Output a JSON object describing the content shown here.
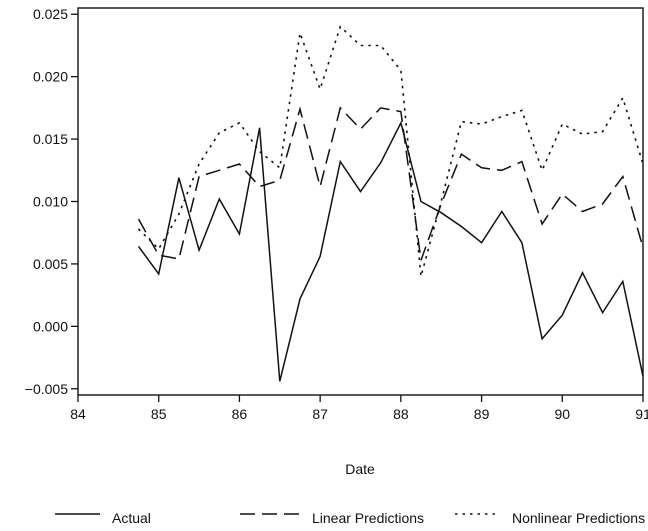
{
  "chart_data": {
    "type": "line",
    "title": "",
    "xlabel": "Date",
    "ylabel": "",
    "xlim": [
      84,
      91
    ],
    "ylim": [
      -0.0055,
      0.0255
    ],
    "x_ticks": [
      "84",
      "85",
      "86",
      "87",
      "88",
      "89",
      "90",
      "91"
    ],
    "y_ticks": [
      "0.025",
      "0.020",
      "0.015",
      "0.010",
      "0.005",
      "0.000",
      "-0.005"
    ],
    "grid": false,
    "legend_position": "bottom",
    "x": [
      84.75,
      85.0,
      85.25,
      85.5,
      85.75,
      86.0,
      86.25,
      86.5,
      86.75,
      87.0,
      87.25,
      87.5,
      87.75,
      88.0,
      88.25,
      88.5,
      88.75,
      89.0,
      89.25,
      89.5,
      89.75,
      90.0,
      90.25,
      90.5,
      90.75,
      91.0
    ],
    "series": [
      {
        "name": "Actual",
        "dash": "solid",
        "values": [
          0.0064,
          0.0042,
          0.0119,
          0.0061,
          0.0102,
          0.0074,
          0.0159,
          -0.0044,
          0.0022,
          0.0056,
          0.0132,
          0.0108,
          0.0131,
          0.0163,
          0.01,
          0.0091,
          0.008,
          0.0067,
          0.0092,
          0.0067,
          -0.001,
          0.0009,
          0.0043,
          0.0011,
          0.0036,
          -0.004
        ]
      },
      {
        "name": "Linear Predictions",
        "dash": "long-dash",
        "values": [
          0.0086,
          0.0057,
          0.0054,
          0.012,
          0.0125,
          0.013,
          0.0112,
          0.0117,
          0.0174,
          0.0112,
          0.0175,
          0.0158,
          0.0175,
          0.0172,
          0.0053,
          0.0098,
          0.0138,
          0.0127,
          0.0125,
          0.0132,
          0.0082,
          0.0106,
          0.0092,
          0.0098,
          0.012,
          0.0063
        ]
      },
      {
        "name": "Nonlinear Predictions",
        "dash": "dotted",
        "values": [
          0.0078,
          0.0062,
          0.009,
          0.013,
          0.0155,
          0.0163,
          0.014,
          0.0127,
          0.0235,
          0.019,
          0.024,
          0.0225,
          0.0225,
          0.0205,
          0.004,
          0.01,
          0.0164,
          0.0162,
          0.0168,
          0.0173,
          0.0125,
          0.0162,
          0.0154,
          0.0156,
          0.0183,
          0.013
        ]
      }
    ]
  }
}
